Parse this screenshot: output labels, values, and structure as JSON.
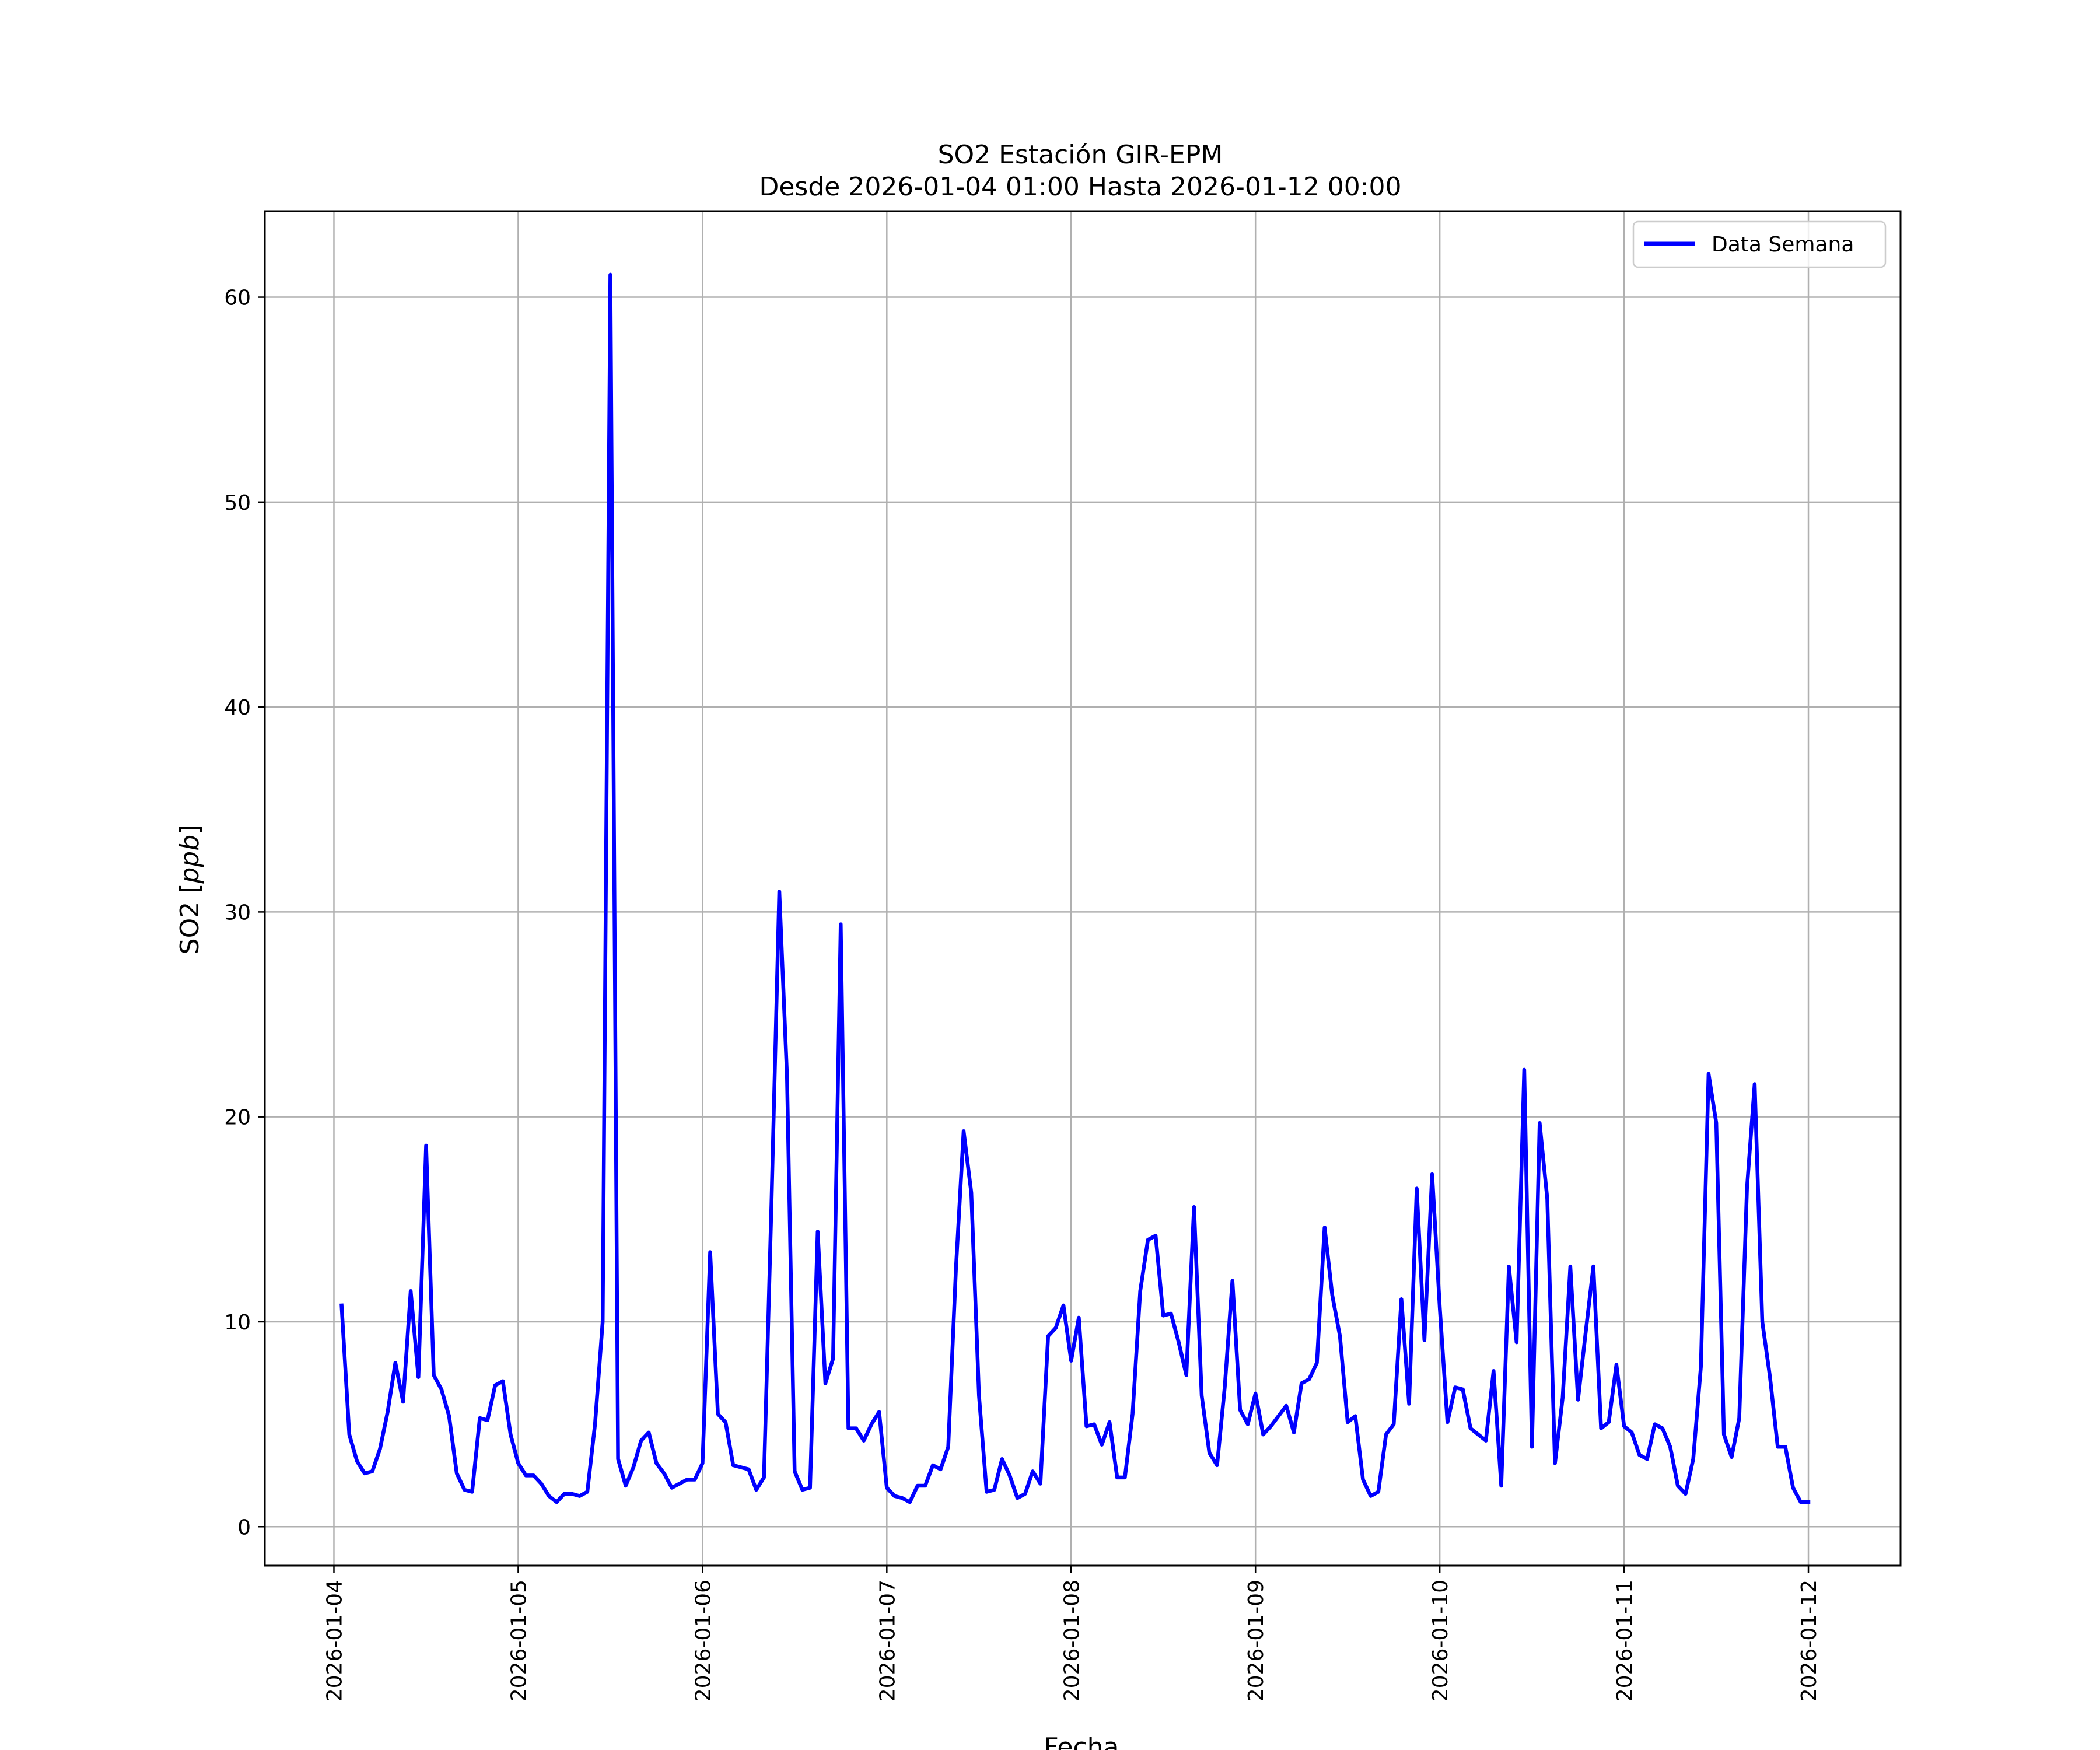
{
  "chart_data": {
    "type": "line",
    "title": "SO2 Estación GIR-EPM",
    "subtitle": "Desde 2026-01-04 01:00 Hasta 2026-01-12 00:00",
    "xlabel": "Fecha",
    "ylabel_main": "SO2 [",
    "ylabel_unit": "ppb",
    "ylabel_end": "]",
    "xlim": [
      "2026-01-03T15:00",
      "2026-01-12T12:00"
    ],
    "ylim": [
      -1.9,
      64.2
    ],
    "grid": true,
    "legend_position": "top-right",
    "x_tick_labels": [
      "2026-01-04",
      "2026-01-05",
      "2026-01-06",
      "2026-01-07",
      "2026-01-08",
      "2026-01-09",
      "2026-01-10",
      "2026-01-11",
      "2026-01-12"
    ],
    "y_ticks": [
      0,
      10,
      20,
      30,
      40,
      50,
      60
    ],
    "y_tick_labels": [
      "0",
      "10",
      "20",
      "30",
      "40",
      "50",
      "60"
    ],
    "x_start": "2026-01-04T01:00",
    "x_step_hours": 1,
    "series": [
      {
        "name": "Data Semana",
        "color": "#0000ff",
        "values": [
          10.8,
          4.5,
          3.2,
          2.6,
          2.7,
          3.8,
          5.6,
          8.0,
          6.1,
          11.5,
          7.3,
          18.6,
          7.4,
          6.7,
          5.4,
          2.6,
          1.8,
          1.7,
          5.3,
          5.2,
          6.9,
          7.1,
          4.5,
          3.1,
          2.5,
          2.5,
          2.1,
          1.5,
          1.2,
          1.6,
          1.6,
          1.5,
          1.7,
          5.0,
          10.0,
          61.1,
          3.3,
          2.0,
          2.9,
          4.2,
          4.6,
          3.1,
          2.6,
          1.9,
          2.1,
          2.3,
          2.3,
          3.1,
          13.4,
          5.5,
          5.1,
          3.0,
          2.9,
          2.8,
          1.8,
          2.4,
          16.0,
          31.0,
          22.0,
          2.7,
          1.8,
          1.9,
          14.4,
          7.0,
          8.2,
          29.4,
          4.8,
          4.8,
          4.2,
          5.0,
          5.6,
          1.9,
          1.5,
          1.4,
          1.2,
          2.0,
          2.0,
          3.0,
          2.8,
          3.9,
          12.6,
          19.3,
          16.3,
          6.4,
          1.7,
          1.8,
          3.3,
          2.5,
          1.4,
          1.6,
          2.7,
          2.1,
          9.3,
          9.7,
          10.8,
          8.1,
          10.2,
          4.9,
          5.0,
          4.0,
          5.1,
          2.4,
          2.4,
          5.5,
          11.5,
          14.0,
          14.2,
          10.3,
          10.4,
          9.0,
          7.4,
          15.6,
          6.4,
          3.6,
          3.0,
          6.8,
          12.0,
          5.7,
          5.0,
          6.5,
          4.5,
          4.9,
          5.4,
          5.9,
          4.6,
          7.0,
          7.2,
          8.0,
          14.6,
          11.3,
          9.3,
          5.1,
          5.4,
          2.3,
          1.5,
          1.7,
          4.5,
          5.0,
          11.1,
          6.0,
          16.5,
          9.1,
          17.2,
          10.7,
          5.1,
          6.8,
          6.7,
          4.8,
          4.5,
          4.2,
          7.6,
          2.0,
          12.7,
          9.0,
          22.3,
          3.9,
          19.7,
          16.0,
          3.1,
          6.3,
          12.7,
          6.2,
          9.5,
          12.7,
          4.8,
          5.1,
          7.9,
          4.9,
          4.6,
          3.5,
          3.3,
          5.0,
          4.8,
          3.9,
          2.0,
          1.6,
          3.3,
          7.8,
          22.1,
          19.7,
          4.5,
          3.4,
          5.3,
          16.5,
          21.6,
          10.0,
          7.3,
          3.9,
          3.9,
          1.9,
          1.2,
          1.2
        ]
      }
    ]
  }
}
